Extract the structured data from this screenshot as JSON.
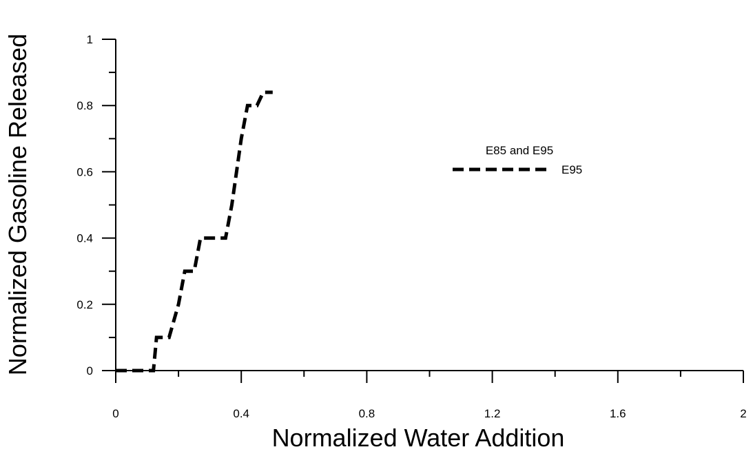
{
  "chart_data": {
    "type": "line",
    "title": "",
    "xlabel": "Normalized Water Addition",
    "ylabel": "Normalized Gasoline Released",
    "xlim": [
      0,
      2
    ],
    "ylim": [
      0,
      1
    ],
    "x_ticks": [
      "0",
      "0.4",
      "0.8",
      "1.2",
      "1.6",
      "2"
    ],
    "x_tick_values": [
      0,
      0.4,
      0.8,
      1.2,
      1.6,
      2
    ],
    "x_minor_ticks": [
      0.2,
      0.6,
      1.0,
      1.4,
      1.8
    ],
    "y_ticks": [
      "0",
      "0.2",
      "0.4",
      "0.6",
      "0.8",
      "1"
    ],
    "y_tick_values": [
      0,
      0.2,
      0.4,
      0.6,
      0.8,
      1
    ],
    "y_minor_ticks": [
      0.1,
      0.3,
      0.5,
      0.7,
      0.9
    ],
    "grid": false,
    "legend": {
      "title": "E85 and E95",
      "placement": "center-right"
    },
    "series": [
      {
        "name": "E95",
        "line_style": "dashed",
        "color": "#000000",
        "x": [
          0,
          0.1,
          0.12,
          0.13,
          0.17,
          0.2,
          0.22,
          0.25,
          0.27,
          0.3,
          0.35,
          0.37,
          0.4,
          0.42,
          0.45,
          0.47,
          0.5
        ],
        "y": [
          0,
          0,
          0,
          0.1,
          0.1,
          0.2,
          0.3,
          0.3,
          0.4,
          0.4,
          0.4,
          0.5,
          0.7,
          0.8,
          0.8,
          0.84,
          0.84
        ]
      }
    ]
  }
}
